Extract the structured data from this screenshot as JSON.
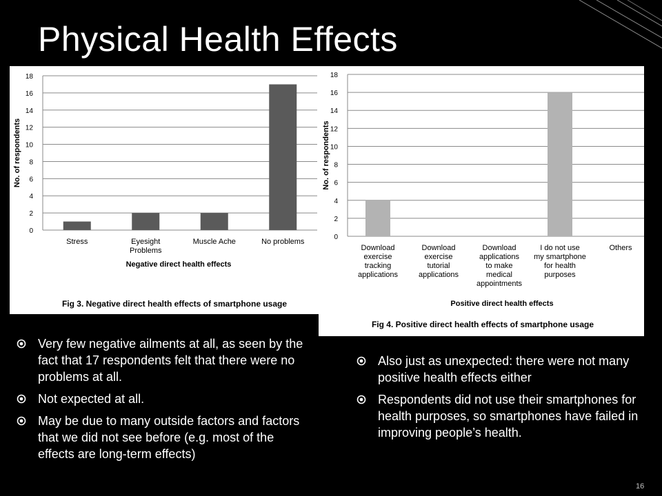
{
  "slide": {
    "title": "Physical Health Effects",
    "page_number": "16",
    "colors": {
      "background": "#000000",
      "text": "#ffffff",
      "bar_left": "#5a5a5a",
      "bar_right": "#b3b3b3"
    },
    "bullet_icon": "circle-target-icon"
  },
  "chart_data": [
    {
      "type": "bar",
      "categories": [
        "Stress",
        "Eyesight Problems",
        "Muscle Ache",
        "No problems"
      ],
      "values": [
        1,
        2,
        2,
        17
      ],
      "ylabel": "No. of respondents",
      "xlabel": "Negative direct health effects",
      "ylim": [
        0,
        18
      ],
      "yticks": [
        "0",
        "2",
        "4",
        "6",
        "8",
        "10",
        "12",
        "14",
        "16",
        "18"
      ],
      "caption": "Fig 3. Negative direct health effects of smartphone usage",
      "grid": true
    },
    {
      "type": "bar",
      "categories": [
        "Download exercise tracking applications",
        "Download exercise tutorial applications",
        "Download applications to make medical appointments",
        "I do not use my smartphone for health purposes",
        "Others"
      ],
      "values": [
        4,
        0,
        0,
        16,
        0
      ],
      "ylabel": "No. of respondents",
      "xlabel": "Positive direct health effects",
      "ylim": [
        0,
        18
      ],
      "yticks": [
        "0",
        "2",
        "4",
        "6",
        "8",
        "10",
        "12",
        "14",
        "16",
        "18"
      ],
      "caption": "Fig 4. Positive direct health effects of smartphone usage",
      "grid": true
    }
  ],
  "bullets_left": [
    "Very few negative ailments at all, as seen by the fact that 17 respondents felt that there were no problems at all.",
    "Not expected at all.",
    "May be due to many outside factors and factors that we did not see before (e.g. most of the effects are long-term effects)"
  ],
  "bullets_right": [
    "Also just as unexpected: there were not many positive health effects either",
    "Respondents did not use their smartphones for health purposes, so smartphones have failed in improving people’s health."
  ]
}
